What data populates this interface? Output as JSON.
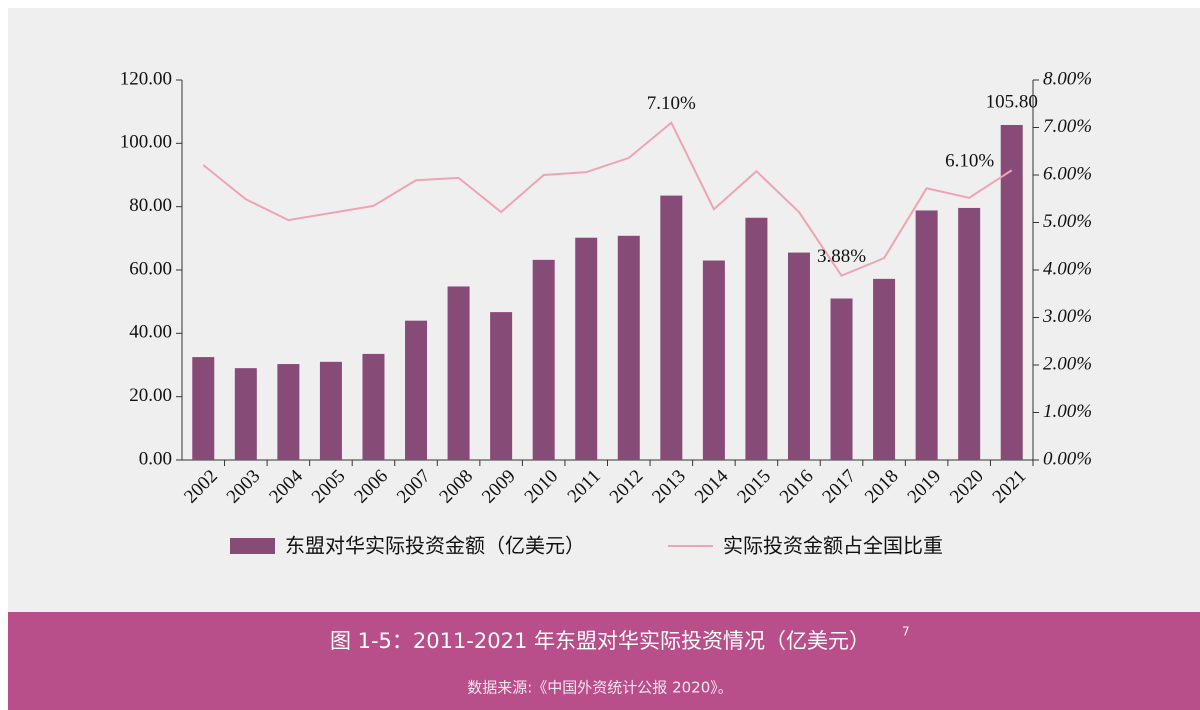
{
  "chart_data": {
    "type": "bar",
    "categories": [
      "2002",
      "2003",
      "2004",
      "2005",
      "2006",
      "2007",
      "2008",
      "2009",
      "2010",
      "2011",
      "2012",
      "2013",
      "2014",
      "2015",
      "2016",
      "2017",
      "2018",
      "2019",
      "2020",
      "2021"
    ],
    "series": [
      {
        "name": "东盟对华实际投资金额（亿美元）",
        "type": "bar",
        "color": "#874b78",
        "values": [
          32.5,
          29,
          30.3,
          31,
          33.5,
          44,
          54.8,
          46.7,
          63.2,
          70.2,
          70.8,
          83.5,
          63,
          76.5,
          65.5,
          51,
          57.2,
          78.8,
          79.6,
          105.8
        ],
        "value_labels": [
          null,
          null,
          null,
          null,
          null,
          null,
          null,
          null,
          null,
          null,
          null,
          null,
          null,
          null,
          null,
          null,
          null,
          null,
          null,
          "105.80"
        ]
      },
      {
        "name": "实际投资金额占全国比重",
        "type": "line",
        "axis": "y2",
        "color": "#f0a3b2",
        "values": [
          6.21,
          5.49,
          5.05,
          5.2,
          5.35,
          5.89,
          5.94,
          5.22,
          6.0,
          6.06,
          6.36,
          7.1,
          5.28,
          6.08,
          5.22,
          3.88,
          4.25,
          5.72,
          5.52,
          6.1
        ],
        "value_labels": [
          null,
          null,
          null,
          null,
          null,
          null,
          null,
          null,
          null,
          null,
          null,
          "7.10%",
          null,
          null,
          null,
          "3.88%",
          null,
          null,
          null,
          "6.10%"
        ]
      }
    ],
    "ylim": [
      0,
      120
    ],
    "yticks": [
      {
        "value": 0,
        "label": "0.00"
      },
      {
        "value": 20,
        "label": "20.00"
      },
      {
        "value": 40,
        "label": "40.00"
      },
      {
        "value": 60,
        "label": "60.00"
      },
      {
        "value": 80,
        "label": "80.00"
      },
      {
        "value": 100,
        "label": "100.00"
      },
      {
        "value": 120,
        "label": "120.00"
      }
    ],
    "y2lim": [
      0,
      8
    ],
    "y2ticks": [
      {
        "value": 0,
        "label": "0.00%"
      },
      {
        "value": 1,
        "label": "1.00%"
      },
      {
        "value": 2,
        "label": "2.00%"
      },
      {
        "value": 3,
        "label": "3.00%"
      },
      {
        "value": 4,
        "label": "4.00%"
      },
      {
        "value": 5,
        "label": "5.00%"
      },
      {
        "value": 6,
        "label": "6.00%"
      },
      {
        "value": 7,
        "label": "7.00%"
      },
      {
        "value": 8,
        "label": "8.00%"
      }
    ],
    "grid": false,
    "legend": "bottom"
  },
  "caption": {
    "title": "图 1-5：2011-2021 年东盟对华实际投资情况（亿美元）",
    "footnote": "7",
    "source": "数据来源:《中国外资统计公报 2020》。"
  }
}
